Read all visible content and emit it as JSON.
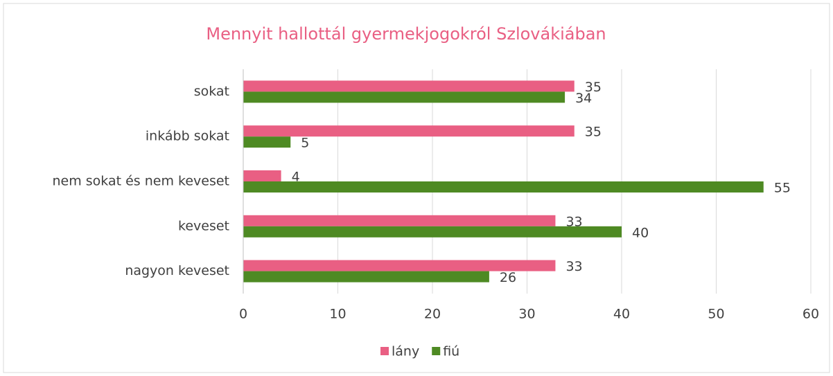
{
  "chart_data": {
    "type": "hbar",
    "title": "Mennyit hallottál gyermekjogokról Szlovákiában",
    "categories": [
      "sokat",
      "inkább sokat",
      "nem sokat és nem keveset",
      "keveset",
      "nagyon keveset"
    ],
    "series": [
      {
        "name": "lány",
        "color": "#e95f83",
        "values": [
          35,
          35,
          4,
          33,
          33
        ]
      },
      {
        "name": "fiú",
        "color": "#4e8a23",
        "values": [
          34,
          5,
          55,
          40,
          26
        ]
      }
    ],
    "xlim": [
      0,
      60
    ],
    "xticks": [
      0,
      10,
      20,
      30,
      40,
      50,
      60
    ],
    "grid": true,
    "legend": "bottom"
  }
}
